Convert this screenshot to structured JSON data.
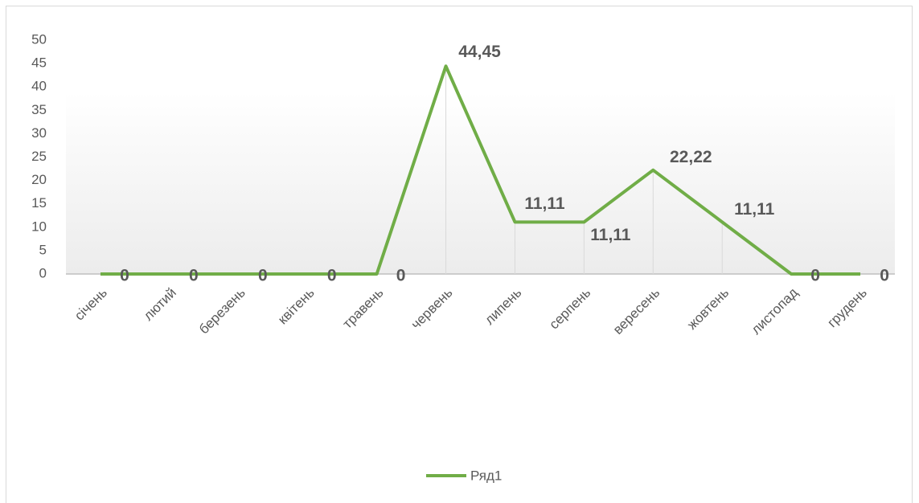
{
  "chart_data": {
    "type": "line",
    "categories": [
      "січень",
      "лютий",
      "березень",
      "квітень",
      "травень",
      "червень",
      "липень",
      "серпень",
      "вересень",
      "жовтень",
      "листопад",
      "грудень"
    ],
    "series": [
      {
        "name": "Ряд1",
        "color": "#70ad47",
        "values": [
          0,
          0,
          0,
          0,
          0,
          44.45,
          11.11,
          11.11,
          22.22,
          11.11,
          0,
          0
        ],
        "value_labels": [
          "0",
          "0",
          "0",
          "0",
          "0",
          "44,45",
          "11,11",
          "11,11",
          "22,22",
          "11,11",
          "0",
          "0"
        ]
      }
    ],
    "ylim": [
      0,
      50
    ],
    "yticks": [
      0,
      5,
      10,
      15,
      20,
      25,
      30,
      35,
      40,
      45,
      50
    ],
    "grid": false,
    "drop_lines": true,
    "legend": "bottom"
  }
}
